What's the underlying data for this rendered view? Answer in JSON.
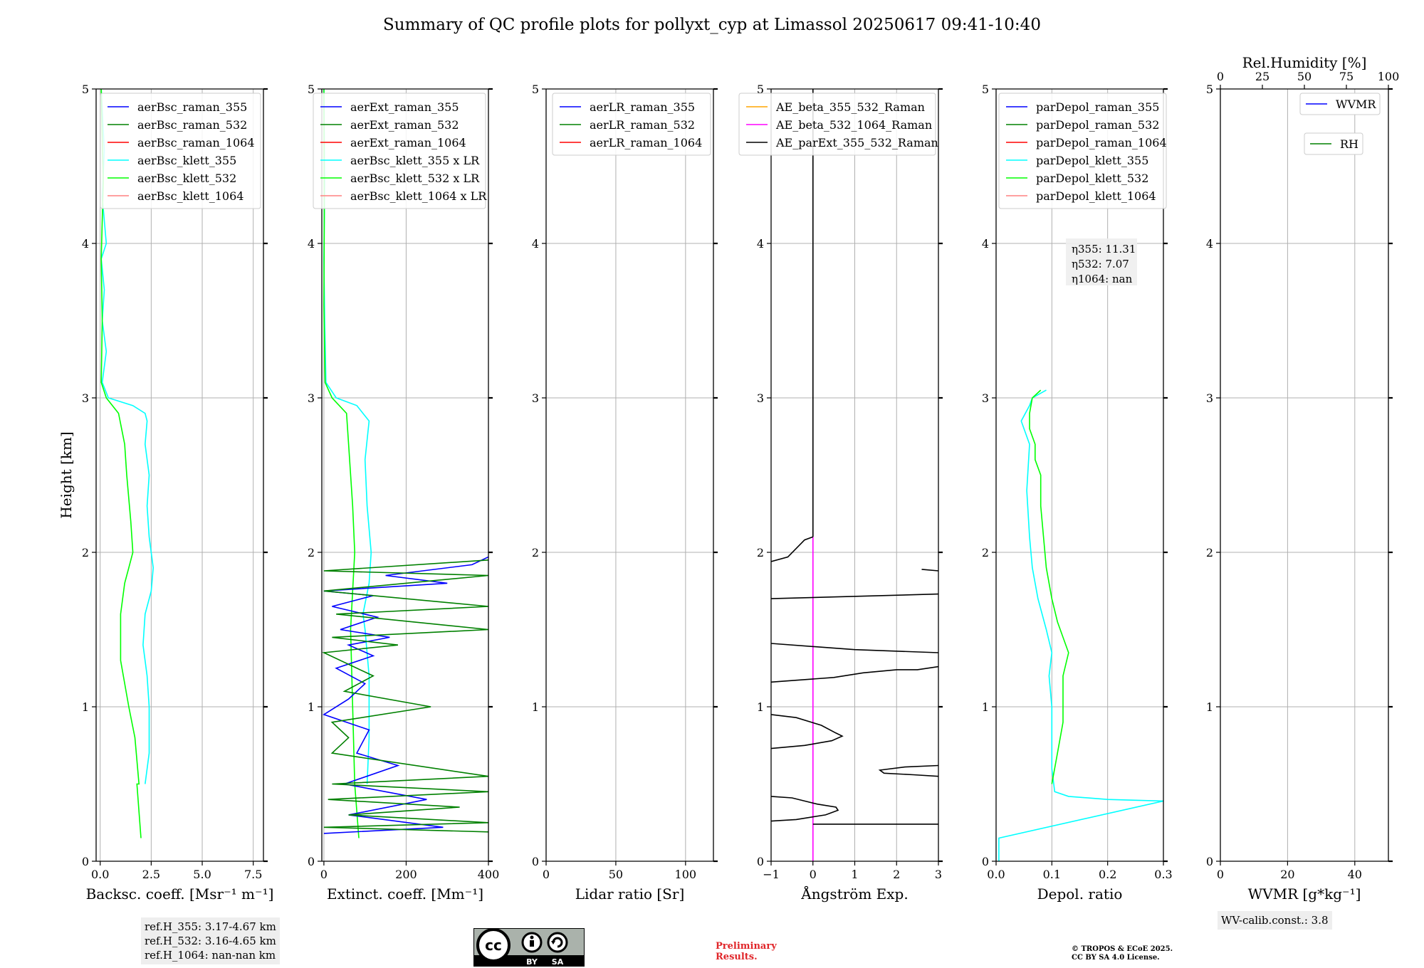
{
  "title": "Summary of QC profile plots for pollyxt_cyp at Limassol 20250617 09:41-10:40",
  "chart_data": [
    {
      "type": "line",
      "id": "bsc",
      "xlabel": "Backsc. coeff. [Msr⁻¹ m⁻¹]",
      "ylabel": "Height [km]",
      "xlim": [
        -0.2,
        8.0
      ],
      "ylim": [
        0,
        5
      ],
      "xticks": [
        0.0,
        2.5,
        5.0,
        7.5
      ],
      "xtick_labels": [
        "0.0",
        "2.5",
        "5.0",
        "7.5"
      ],
      "yticks": [
        0,
        1,
        2,
        3,
        4,
        5
      ],
      "ytick_labels": [
        "0",
        "1",
        "2",
        "3",
        "4",
        "5"
      ],
      "grid": true,
      "legend_position": "top-right",
      "legend": [
        {
          "name": "aerBsc_raman_355",
          "color": "#0000ff"
        },
        {
          "name": "aerBsc_raman_532",
          "color": "#008000"
        },
        {
          "name": "aerBsc_raman_1064",
          "color": "#ff0000"
        },
        {
          "name": "aerBsc_klett_355",
          "color": "#00ffff"
        },
        {
          "name": "aerBsc_klett_532",
          "color": "#00ff00"
        },
        {
          "name": "aerBsc_klett_1064",
          "color": "#ff8080"
        }
      ],
      "series": [
        {
          "name": "aerBsc_klett_355",
          "color": "#00ffff",
          "x": [
            2.2,
            2.4,
            2.4,
            2.3,
            2.1,
            2.2,
            2.5,
            2.6,
            2.4,
            2.3,
            2.4,
            2.2,
            2.3,
            2.2,
            1.6,
            0.4,
            0.1,
            0.3,
            0.1,
            0.2,
            0.05,
            0.3,
            0.1,
            0.2,
            0.05
          ],
          "y": [
            0.5,
            0.7,
            1.0,
            1.2,
            1.4,
            1.6,
            1.75,
            1.9,
            2.1,
            2.3,
            2.5,
            2.7,
            2.85,
            2.9,
            2.95,
            3.0,
            3.1,
            3.3,
            3.5,
            3.7,
            3.9,
            4.0,
            4.3,
            4.6,
            5.0
          ]
        },
        {
          "name": "aerBsc_klett_532",
          "color": "#00ff00",
          "x": [
            2.0,
            1.8,
            1.9,
            1.7,
            1.4,
            1.0,
            1.0,
            1.2,
            1.4,
            1.6,
            1.5,
            1.3,
            1.2,
            0.9,
            0.3,
            0.05,
            0.1,
            0.05,
            0.15,
            0.05
          ],
          "y": [
            0.15,
            0.5,
            0.5,
            0.8,
            1.0,
            1.3,
            1.6,
            1.8,
            1.9,
            2.0,
            2.2,
            2.5,
            2.7,
            2.9,
            3.0,
            3.1,
            3.5,
            3.9,
            4.4,
            5.0
          ]
        }
      ],
      "annotation": [
        "ref.H_355: 3.17-4.67 km",
        "ref.H_532: 3.16-4.65 km",
        "ref.H_1064: nan-nan km"
      ]
    },
    {
      "type": "line",
      "id": "ext",
      "xlabel": "Extinct. coeff. [Mm⁻¹]",
      "xlim": [
        -5,
        400
      ],
      "ylim": [
        0,
        5
      ],
      "xticks": [
        0,
        200,
        400
      ],
      "xtick_labels": [
        "0",
        "200",
        "400"
      ],
      "yticks": [
        0,
        1,
        2,
        3,
        4,
        5
      ],
      "ytick_labels": [
        "0",
        "1",
        "2",
        "3",
        "4",
        "5"
      ],
      "grid": true,
      "legend_position": "top-right",
      "legend": [
        {
          "name": "aerExt_raman_355",
          "color": "#0000ff"
        },
        {
          "name": "aerExt_raman_532",
          "color": "#008000"
        },
        {
          "name": "aerExt_raman_1064",
          "color": "#ff0000"
        },
        {
          "name": "aerBsc_klett_355 x LR",
          "color": "#00ffff"
        },
        {
          "name": "aerBsc_klett_532 x LR",
          "color": "#00ff00"
        },
        {
          "name": "aerBsc_klett_1064 x LR",
          "color": "#ff8080"
        }
      ],
      "series": [
        {
          "name": "aerBsc_klett_355 x LR",
          "color": "#00ffff",
          "x": [
            105,
            110,
            110,
            100,
            95,
            110,
            115,
            105,
            100,
            110,
            95,
            80,
            30,
            5,
            2,
            0,
            2,
            0
          ],
          "y": [
            0.5,
            0.8,
            1.2,
            1.5,
            1.6,
            1.8,
            2.0,
            2.3,
            2.6,
            2.85,
            2.9,
            2.95,
            3.0,
            3.1,
            3.5,
            3.9,
            4.4,
            5.0
          ]
        },
        {
          "name": "aerBsc_klett_532 x LR",
          "color": "#00ff00",
          "x": [
            85,
            75,
            70,
            65,
            75,
            70,
            60,
            55,
            20,
            3,
            0,
            1,
            0
          ],
          "y": [
            0.15,
            0.5,
            1.0,
            1.5,
            2.0,
            2.3,
            2.7,
            2.9,
            3.0,
            3.1,
            3.6,
            4.2,
            5.0
          ]
        },
        {
          "name": "aerExt_raman_355",
          "color": "#0000ff",
          "x": [
            0,
            290,
            60,
            250,
            50,
            180,
            80,
            110,
            0,
            60,
            100,
            30,
            120,
            60,
            160,
            40,
            130,
            20,
            120,
            0,
            300,
            150,
            360,
            400
          ],
          "y": [
            0.18,
            0.22,
            0.3,
            0.4,
            0.5,
            0.62,
            0.7,
            0.85,
            0.95,
            1.05,
            1.15,
            1.25,
            1.33,
            1.4,
            1.45,
            1.5,
            1.58,
            1.65,
            1.72,
            1.75,
            1.8,
            1.85,
            1.92,
            1.97
          ]
        },
        {
          "name": "aerExt_raman_532",
          "color": "#008000",
          "x": [
            400,
            0,
            400,
            60,
            330,
            10,
            400,
            20,
            400,
            20,
            60,
            20,
            260,
            50,
            120,
            0,
            180,
            20,
            400,
            30,
            400,
            0,
            400,
            0,
            400
          ],
          "y": [
            0.19,
            0.22,
            0.25,
            0.3,
            0.35,
            0.4,
            0.45,
            0.5,
            0.55,
            0.7,
            0.8,
            0.9,
            1.0,
            1.1,
            1.2,
            1.35,
            1.4,
            1.45,
            1.5,
            1.6,
            1.65,
            1.75,
            1.85,
            1.88,
            1.95
          ]
        }
      ]
    },
    {
      "type": "line",
      "id": "lr",
      "xlabel": "Lidar ratio [Sr]",
      "xlim": [
        0,
        120
      ],
      "ylim": [
        0,
        5
      ],
      "xticks": [
        0,
        50,
        100
      ],
      "xtick_labels": [
        "0",
        "50",
        "100"
      ],
      "yticks": [
        0,
        1,
        2,
        3,
        4,
        5
      ],
      "ytick_labels": [
        "0",
        "1",
        "2",
        "3",
        "4",
        "5"
      ],
      "grid": true,
      "legend_position": "top-right",
      "legend": [
        {
          "name": "aerLR_raman_355",
          "color": "#0000ff"
        },
        {
          "name": "aerLR_raman_532",
          "color": "#008000"
        },
        {
          "name": "aerLR_raman_1064",
          "color": "#ff0000"
        }
      ],
      "series": []
    },
    {
      "type": "line",
      "id": "ae",
      "xlabel": "Ångström Exp.",
      "xlim": [
        -1,
        3
      ],
      "ylim": [
        0,
        5
      ],
      "xticks": [
        -1,
        0,
        1,
        2,
        3
      ],
      "xtick_labels": [
        "−1",
        "0",
        "1",
        "2",
        "3"
      ],
      "yticks": [
        0,
        1,
        2,
        3,
        4,
        5
      ],
      "ytick_labels": [
        "0",
        "1",
        "2",
        "3",
        "4",
        "5"
      ],
      "grid": true,
      "legend_position": "top-right",
      "legend": [
        {
          "name": "AE_beta_355_532_Raman",
          "color": "#ffa500"
        },
        {
          "name": "AE_beta_532_1064_Raman",
          "color": "#ff00ff"
        },
        {
          "name": "AE_parExt_355_532_Raman",
          "color": "#000000"
        }
      ],
      "series": [
        {
          "name": "AE_beta_532_1064_Raman",
          "color": "#ff00ff",
          "x": [
            0,
            0
          ],
          "y": [
            0.0,
            2.1
          ]
        },
        {
          "name": "AE_parExt_355_532_Raman",
          "color": "#000000",
          "x": [
            0,
            0
          ],
          "y": [
            2.1,
            5.0
          ]
        },
        {
          "name": "AE_parExt_355_532_Raman",
          "color": "#000000",
          "x": [
            0,
            -0.2,
            -0.6,
            -1.0
          ],
          "y": [
            2.1,
            2.08,
            1.97,
            1.94
          ]
        },
        {
          "name": "AE_parExt_355_532_Raman",
          "color": "#000000",
          "x": [
            -1.0,
            3.0
          ],
          "y": [
            1.7,
            1.73
          ]
        },
        {
          "name": "AE_parExt_355_532_Raman",
          "color": "#000000",
          "x": [
            2.6,
            3.0
          ],
          "y": [
            1.89,
            1.88
          ]
        },
        {
          "name": "AE_parExt_355_532_Raman",
          "color": "#000000",
          "x": [
            -1.0,
            1.0,
            3.0
          ],
          "y": [
            1.41,
            1.37,
            1.35
          ]
        },
        {
          "name": "AE_parExt_355_532_Raman",
          "color": "#000000",
          "x": [
            -1.0,
            0.5,
            1.2,
            2.0,
            2.5,
            3.0
          ],
          "y": [
            1.16,
            1.19,
            1.22,
            1.24,
            1.24,
            1.26
          ]
        },
        {
          "name": "AE_parExt_355_532_Raman",
          "color": "#000000",
          "x": [
            -1.0,
            -0.4,
            0.2,
            0.55,
            0.7,
            0.45,
            -0.2,
            -1.0
          ],
          "y": [
            0.95,
            0.93,
            0.88,
            0.83,
            0.81,
            0.78,
            0.75,
            0.73
          ]
        },
        {
          "name": "AE_parExt_355_532_Raman",
          "color": "#000000",
          "x": [
            3.0,
            2.2,
            1.6,
            1.7,
            2.4,
            3.0
          ],
          "y": [
            0.62,
            0.61,
            0.59,
            0.57,
            0.56,
            0.55
          ]
        },
        {
          "name": "AE_parExt_355_532_Raman",
          "color": "#000000",
          "x": [
            -1.0,
            -0.5,
            0.1,
            0.55,
            0.6,
            0.3,
            -0.4,
            -1.0
          ],
          "y": [
            0.42,
            0.41,
            0.37,
            0.35,
            0.33,
            0.3,
            0.27,
            0.26
          ]
        },
        {
          "name": "AE_parExt_355_532_Raman",
          "color": "#000000",
          "x": [
            0.0,
            3.0
          ],
          "y": [
            0.24,
            0.24
          ]
        }
      ]
    },
    {
      "type": "line",
      "id": "depol",
      "xlabel": "Depol. ratio",
      "xlim": [
        0.0,
        0.3
      ],
      "ylim": [
        0,
        5
      ],
      "xticks": [
        0.0,
        0.1,
        0.2,
        0.3
      ],
      "xtick_labels": [
        "0.0",
        "0.1",
        "0.2",
        "0.3"
      ],
      "yticks": [
        0,
        1,
        2,
        3,
        4,
        5
      ],
      "ytick_labels": [
        "0",
        "1",
        "2",
        "3",
        "4",
        "5"
      ],
      "grid": true,
      "legend_position": "top-left",
      "legend": [
        {
          "name": "parDepol_raman_355",
          "color": "#0000ff"
        },
        {
          "name": "parDepol_raman_532",
          "color": "#008000"
        },
        {
          "name": "parDepol_raman_1064",
          "color": "#ff0000"
        },
        {
          "name": "parDepol_klett_355",
          "color": "#00ffff"
        },
        {
          "name": "parDepol_klett_532",
          "color": "#00ff00"
        },
        {
          "name": "parDepol_klett_1064",
          "color": "#ff8080"
        }
      ],
      "series": [
        {
          "name": "parDepol_klett_355",
          "color": "#00ffff",
          "x": [
            0.005,
            0.005,
            0.3,
            0.2,
            0.13,
            0.105,
            0.1,
            0.1,
            0.095,
            0.1,
            0.09,
            0.075,
            0.065,
            0.06,
            0.055,
            0.06,
            0.05,
            0.045,
            0.06,
            0.065,
            0.09
          ],
          "y": [
            0.0,
            0.15,
            0.39,
            0.4,
            0.42,
            0.45,
            0.6,
            1.0,
            1.2,
            1.35,
            1.5,
            1.7,
            1.9,
            2.1,
            2.4,
            2.7,
            2.8,
            2.85,
            2.95,
            3.0,
            3.05
          ]
        },
        {
          "name": "parDepol_klett_532",
          "color": "#00ff00",
          "x": [
            0.1,
            0.11,
            0.12,
            0.12,
            0.13,
            0.12,
            0.11,
            0.1,
            0.09,
            0.085,
            0.08,
            0.08,
            0.07,
            0.07,
            0.06,
            0.06,
            0.065,
            0.08
          ],
          "y": [
            0.5,
            0.7,
            0.9,
            1.2,
            1.35,
            1.45,
            1.55,
            1.7,
            1.9,
            2.1,
            2.3,
            2.5,
            2.6,
            2.7,
            2.8,
            2.9,
            3.0,
            3.05
          ]
        }
      ],
      "annotation": [
        "η355: 11.31",
        "η532: 7.07",
        "η1064: nan"
      ]
    },
    {
      "type": "line",
      "id": "wv",
      "xlabel": "WVMR [g*kg⁻¹]",
      "xlim": [
        0,
        50
      ],
      "ylim": [
        0,
        5
      ],
      "xticks": [
        0,
        20,
        40
      ],
      "xtick_labels": [
        "0",
        "20",
        "40"
      ],
      "yticks": [
        0,
        1,
        2,
        3,
        4,
        5
      ],
      "ytick_labels": [
        "0",
        "1",
        "2",
        "3",
        "4",
        "5"
      ],
      "grid": true,
      "top_axis_label": "Rel.Humidity [%]",
      "top_xlim": [
        0,
        100
      ],
      "top_xticks": [
        0,
        25,
        50,
        75,
        100
      ],
      "top_xtick_labels": [
        "0",
        "25",
        "50",
        "75",
        "100"
      ],
      "legend_position": "top-right",
      "legend": [
        {
          "name": "WVMR",
          "color": "#0000ff"
        },
        {
          "name": "RH",
          "color": "#008000"
        }
      ],
      "series": [],
      "annotation": [
        "WV-calib.const.: 3.8"
      ]
    }
  ],
  "footer": {
    "license_badge_labels": [
      "cc",
      "BY",
      "SA"
    ],
    "preliminary": [
      "Preliminary",
      "Results."
    ],
    "copyright": [
      "© TROPOS & ECoE 2025.",
      "CC BY SA 4.0 License."
    ]
  }
}
